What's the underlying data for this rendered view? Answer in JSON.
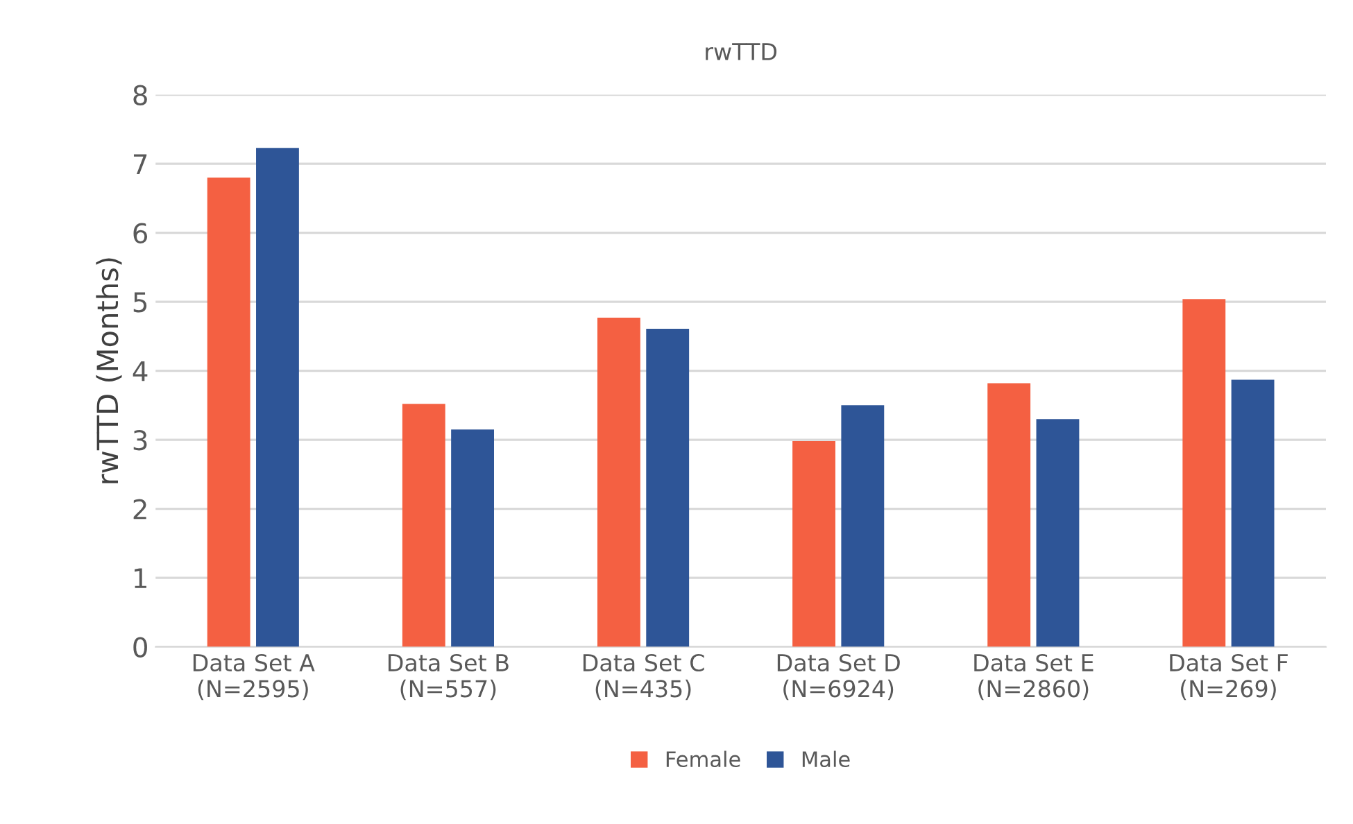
{
  "chart_data": {
    "type": "bar",
    "title": "rwTTD",
    "ylabel": "rwTTD (Months)",
    "categories": [
      "Data Set A\n(N=2595)",
      "Data Set B\n(N=557)",
      "Data Set C\n(N=435)",
      "Data Set D\n(N=6924)",
      "Data Set E\n(N=2860)",
      "Data Set F\n(N=269)"
    ],
    "series": [
      {
        "name": "Female",
        "color": "#f46042",
        "values": [
          6.8,
          3.52,
          4.77,
          2.98,
          3.82,
          5.04
        ]
      },
      {
        "name": "Male",
        "color": "#2e5597",
        "values": [
          7.23,
          3.15,
          4.61,
          3.5,
          3.3,
          3.87
        ]
      }
    ],
    "ylim": [
      0,
      8
    ],
    "yticks": [
      0,
      1,
      2,
      3,
      4,
      5,
      6,
      7,
      8
    ],
    "grid": "y",
    "legend": "bottom"
  }
}
